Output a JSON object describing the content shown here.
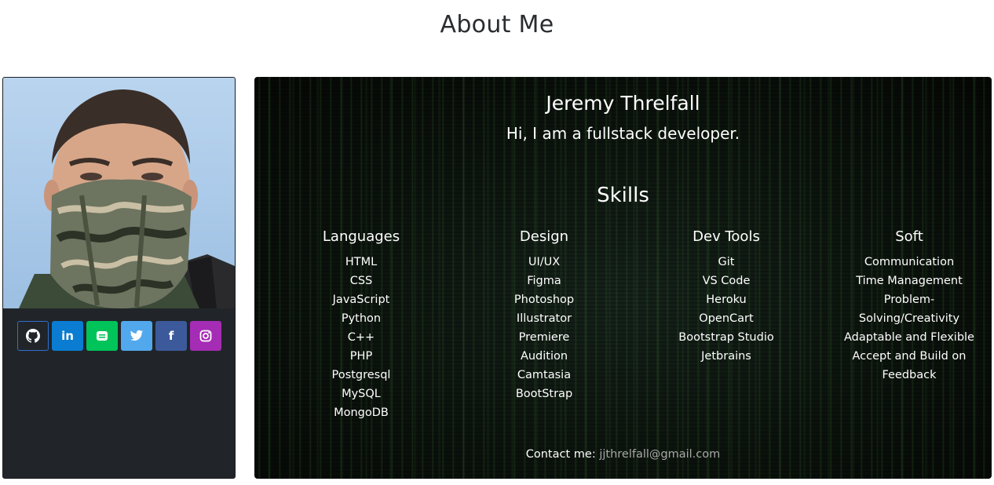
{
  "page": {
    "title": "About Me"
  },
  "profile": {
    "social": [
      {
        "name": "github",
        "icon": "github-icon",
        "color": "#212529"
      },
      {
        "name": "linkedin",
        "icon": "linkedin-icon",
        "color": "#0a7cd1",
        "glyph": "in"
      },
      {
        "name": "line",
        "icon": "line-icon",
        "color": "#00c35a"
      },
      {
        "name": "twitter",
        "icon": "twitter-icon",
        "color": "#52a8ec"
      },
      {
        "name": "facebook",
        "icon": "facebook-icon",
        "color": "#3c5a9b",
        "glyph": "f"
      },
      {
        "name": "instagram",
        "icon": "instagram-icon",
        "color": "#a52cb4"
      }
    ]
  },
  "intro": {
    "name": "Jeremy Threlfall",
    "tagline": "Hi, I am a fullstack developer."
  },
  "skills": {
    "title": "Skills",
    "columns": [
      {
        "heading": "Languages",
        "items": [
          "HTML",
          "CSS",
          "JavaScript",
          "Python",
          "C++",
          "PHP",
          "Postgresql",
          "MySQL",
          "MongoDB"
        ]
      },
      {
        "heading": "Design",
        "items": [
          "UI/UX",
          "Figma",
          "Photoshop",
          "Illustrator",
          "Premiere",
          "Audition",
          "Camtasia",
          "BootStrap"
        ]
      },
      {
        "heading": "Dev Tools",
        "items": [
          "Git",
          "VS Code",
          "Heroku",
          "OpenCart",
          "Bootstrap Studio",
          "Jetbrains"
        ]
      },
      {
        "heading": "Soft",
        "items": [
          "Communication",
          "Time Management",
          "Problem-Solving/Creativity",
          "Adaptable and Flexible",
          "Accept and Build on Feedback"
        ]
      }
    ]
  },
  "contact": {
    "label": "Contact me:",
    "email": "jjthrelfall@gmail.com"
  }
}
